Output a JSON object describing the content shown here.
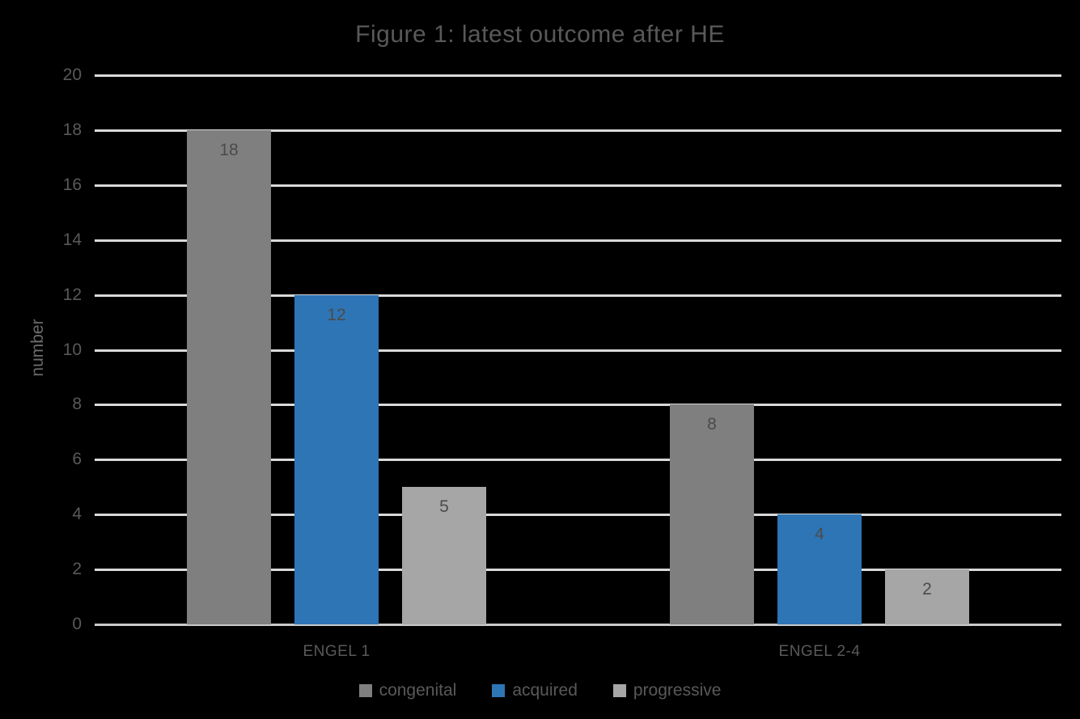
{
  "chart_data": {
    "type": "bar",
    "title": "Figure 1: latest outcome after HE",
    "xlabel": "",
    "ylabel": "number",
    "categories": [
      "ENGEL 1",
      "ENGEL 2-4"
    ],
    "series": [
      {
        "name": "congenital",
        "color": "#7F7F7F",
        "values": [
          18,
          8
        ]
      },
      {
        "name": "acquired",
        "color": "#2E75B6",
        "values": [
          12,
          4
        ]
      },
      {
        "name": "progressive",
        "color": "#A6A6A6",
        "values": [
          5,
          2
        ]
      }
    ],
    "ylim": [
      0,
      20
    ],
    "ytick_step": 2,
    "grid": true,
    "legend_position": "bottom",
    "data_labels": true
  },
  "colors": {
    "background": "#000000",
    "gridline": "#D9D9D9",
    "axis_line": "#C9C9C9",
    "title_text": "#595959",
    "tick_text": "#595959",
    "data_label_text": "#4B4B4B"
  }
}
